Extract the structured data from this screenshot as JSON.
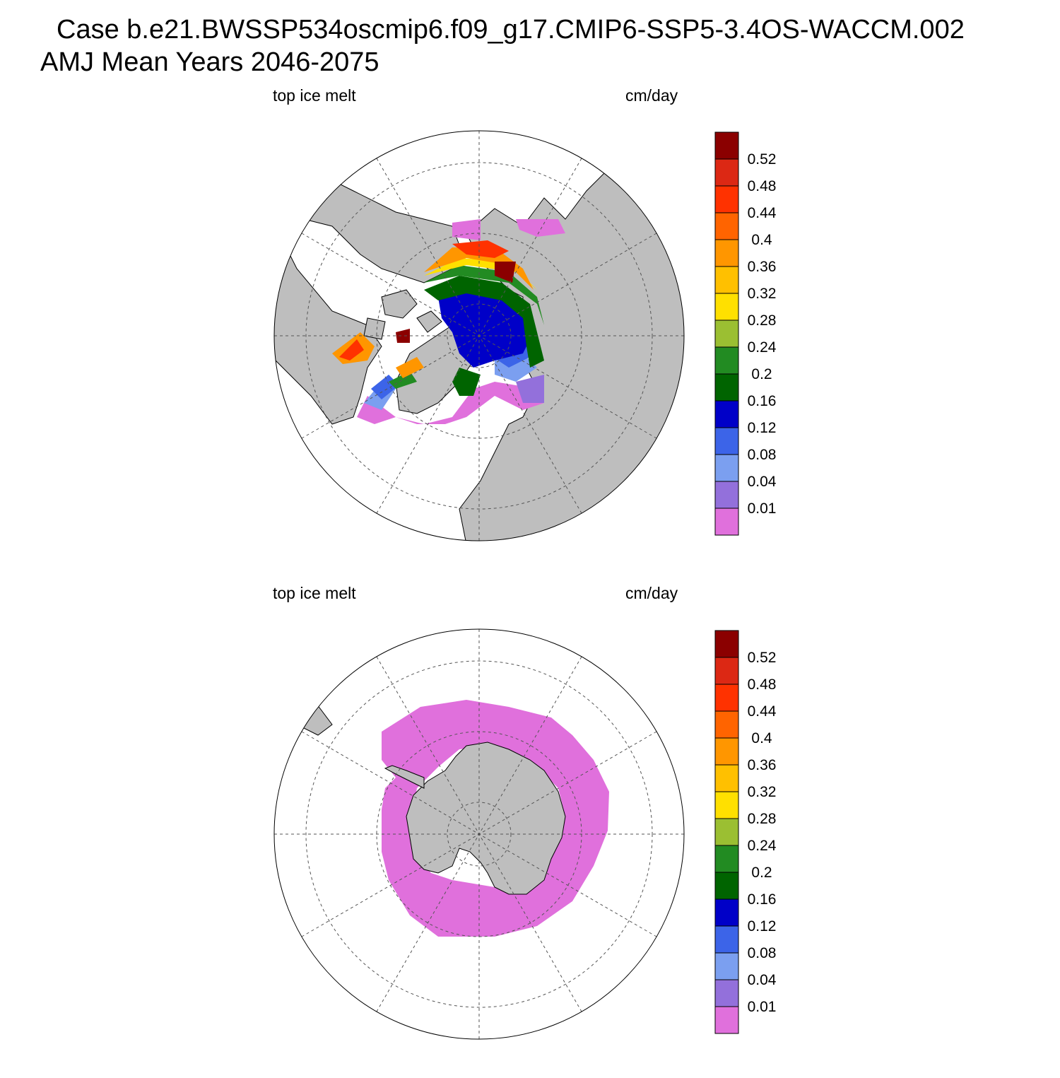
{
  "figure": {
    "title_line1": "Case b.e21.BWSSP534oscmip6.f09_g17.CMIP6-SSP5-3.4OS-WACCM.002",
    "title_line2": "AMJ Mean   Years 2046-2075"
  },
  "panels": [
    {
      "id": "north",
      "hemisphere": "Arctic",
      "left_label": "top ice melt",
      "right_label": "cm/day"
    },
    {
      "id": "south",
      "hemisphere": "Antarctic",
      "left_label": "top ice melt",
      "right_label": "cm/day"
    }
  ],
  "colorbar": {
    "levels": [
      "0.01",
      "0.04",
      "0.08",
      "0.12",
      "0.16",
      "0.2",
      "0.24",
      "0.28",
      "0.32",
      "0.36",
      "0.4",
      "0.44",
      "0.48",
      "0.52"
    ],
    "colors": [
      "#e070dc",
      "#9370db",
      "#7b9ff0",
      "#3c64e8",
      "#0000c8",
      "#006400",
      "#228b22",
      "#9bbf32",
      "#ffe000",
      "#ffc000",
      "#ff9600",
      "#ff6400",
      "#ff3200",
      "#dc2814",
      "#8b0000"
    ]
  },
  "colors": {
    "land": "#bebebe",
    "ocean": "#ffffff",
    "grid": "#555555"
  }
}
